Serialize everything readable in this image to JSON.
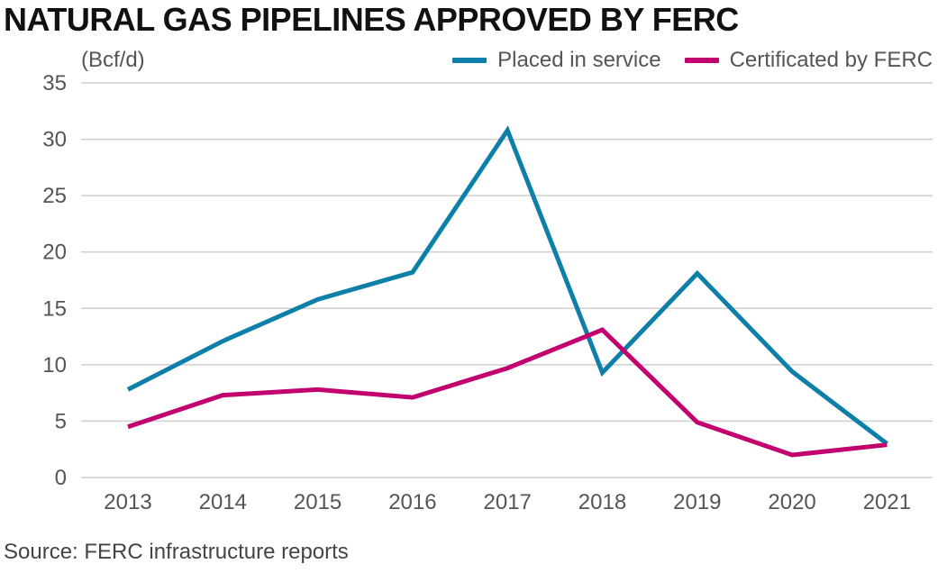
{
  "title": "NATURAL GAS PIPELINES APPROVED BY FERC",
  "unit": "(Bcf/d)",
  "source": "Source: FERC infrastructure reports",
  "colors": {
    "placed_in_service": "#0e7fa8",
    "certificated_by_ferc": "#c2006e"
  },
  "chart_data": {
    "type": "line",
    "title": "NATURAL GAS PIPELINES APPROVED BY FERC",
    "ylabel": "(Bcf/d)",
    "xlabel": "",
    "ylim": [
      0,
      35
    ],
    "yticks": [
      0,
      5,
      10,
      15,
      20,
      25,
      30,
      35
    ],
    "grid": true,
    "legend_position": "top-right",
    "categories": [
      "2013",
      "2014",
      "2015",
      "2016",
      "2017",
      "2018",
      "2019",
      "2020",
      "2021"
    ],
    "series": [
      {
        "name": "Placed in service",
        "color": "#0e7fa8",
        "values": [
          7.8,
          12.1,
          15.8,
          18.2,
          30.8,
          9.3,
          18.1,
          9.4,
          3.0
        ]
      },
      {
        "name": "Certificated by FERC",
        "color": "#c2006e",
        "values": [
          4.5,
          7.3,
          7.8,
          7.1,
          9.7,
          13.1,
          4.9,
          2.0,
          2.9
        ]
      }
    ]
  }
}
